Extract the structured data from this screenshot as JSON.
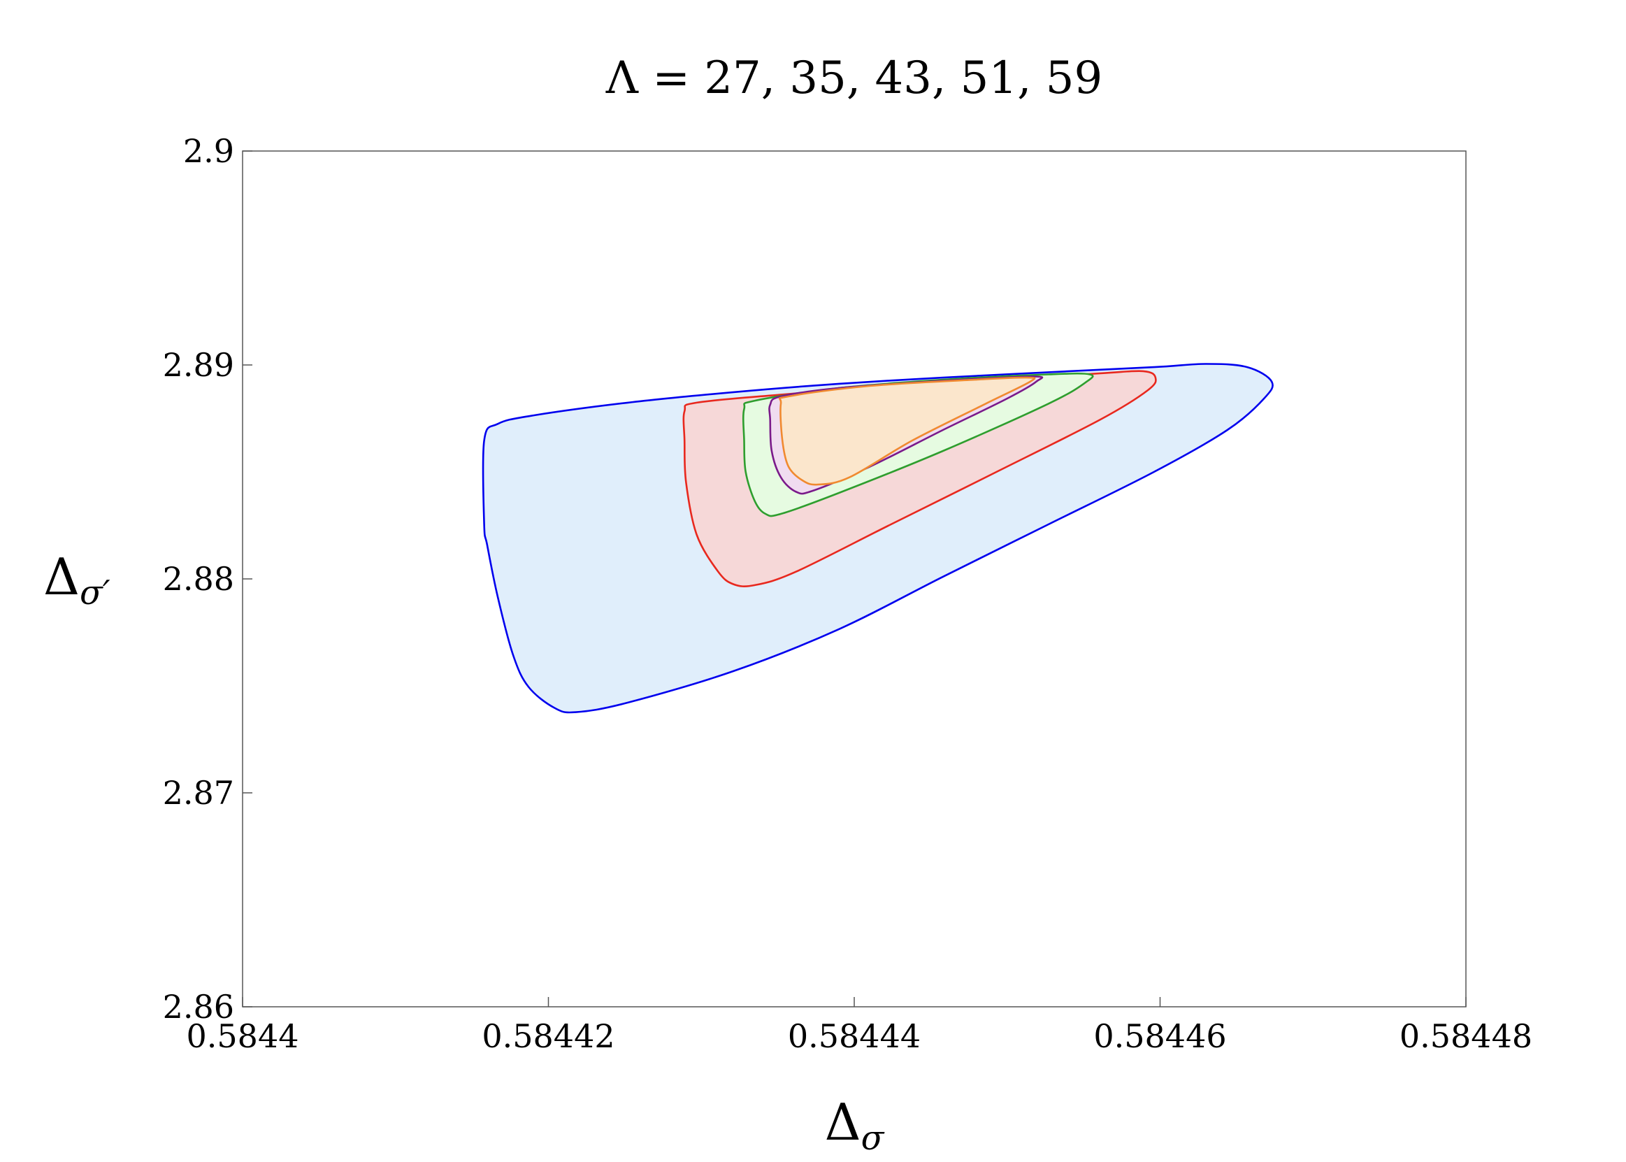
{
  "chart_data": {
    "type": "area",
    "title": "Λ = 27, 35, 43, 51, 59",
    "xlabel": "Δ",
    "xlabel_sub": "σ",
    "ylabel": "Δ",
    "ylabel_sub": "σ′",
    "xlim": [
      0.5844,
      0.58448
    ],
    "ylim": [
      2.86,
      2.9
    ],
    "xticks": [
      0.5844,
      0.58442,
      0.58444,
      0.58446,
      0.58448
    ],
    "xtick_labels": [
      "0.5844",
      "0.58442",
      "0.58444",
      "0.58446",
      "0.58448"
    ],
    "yticks": [
      2.86,
      2.87,
      2.88,
      2.89,
      2.9
    ],
    "ytick_labels": [
      "2.86",
      "2.87",
      "2.88",
      "2.89",
      "2.9"
    ],
    "grid": false,
    "legend": "none",
    "series": [
      {
        "name": "Λ=27",
        "stroke": "#0000ee",
        "fill": "#e0eefb",
        "x": [
          0.5844158,
          0.5844167,
          0.5844191,
          0.5844252,
          0.5844321,
          0.584439,
          0.5844458,
          0.5844527,
          0.5844596,
          0.584463,
          0.5844657,
          0.5844673,
          0.5844668,
          0.5844644,
          0.5844596,
          0.5844527,
          0.5844458,
          0.584439,
          0.5844321,
          0.5844252,
          0.5844218,
          0.5844204,
          0.5844187,
          0.5844177,
          0.5844167,
          0.584416,
          0.5844158
        ],
        "y": [
          2.88647,
          2.88725,
          2.88765,
          2.88824,
          2.88873,
          2.88912,
          2.88941,
          2.88966,
          2.8899,
          2.89005,
          2.8899,
          2.88922,
          2.88843,
          2.88696,
          2.885,
          2.88255,
          2.8801,
          2.87765,
          2.87569,
          2.87422,
          2.87377,
          2.87397,
          2.87495,
          2.87642,
          2.87912,
          2.88157,
          2.88255
        ]
      },
      {
        "name": "Λ=35",
        "stroke": "#e8281e",
        "fill": "#f6d8d8",
        "x": [
          0.5844289,
          0.5844297,
          0.5844355,
          0.5844424,
          0.5844493,
          0.5844561,
          0.5844589,
          0.5844597,
          0.5844592,
          0.5844561,
          0.5844493,
          0.5844424,
          0.5844362,
          0.5844335,
          0.5844321,
          0.5844311,
          0.5844297,
          0.584429,
          0.5844289
        ],
        "y": [
          2.88784,
          2.88824,
          2.88863,
          2.88902,
          2.88931,
          2.88961,
          2.88971,
          2.88941,
          2.88882,
          2.88745,
          2.885,
          2.88255,
          2.88034,
          2.87971,
          2.87975,
          2.88034,
          2.88206,
          2.88451,
          2.88647
        ]
      },
      {
        "name": "Λ=43",
        "stroke": "#2e9e2e",
        "fill": "#e6fbe1",
        "x": [
          0.5844328,
          0.5844335,
          0.584439,
          0.5844458,
          0.5844527,
          0.5844554,
          0.5844551,
          0.5844527,
          0.5844458,
          0.584439,
          0.5844352,
          0.5844342,
          0.5844335,
          0.5844329,
          0.5844328
        ],
        "y": [
          2.88794,
          2.88833,
          2.88892,
          2.88931,
          2.88956,
          2.88956,
          2.88917,
          2.88819,
          2.88598,
          2.88402,
          2.88304,
          2.88304,
          2.88363,
          2.885,
          2.88647
        ]
      },
      {
        "name": "Λ=51",
        "stroke": "#7a1a8a",
        "fill": "#f0dcf0",
        "x": [
          0.5844345,
          0.5844352,
          0.584439,
          0.5844458,
          0.5844517,
          0.5844519,
          0.58445,
          0.5844458,
          0.584441,
          0.5844373,
          0.5844362,
          0.5844352,
          0.5844346,
          0.5844345
        ],
        "y": [
          2.88814,
          2.88853,
          2.88892,
          2.88926,
          2.88946,
          2.88922,
          2.88843,
          2.88696,
          2.88524,
          2.88412,
          2.88407,
          2.88475,
          2.88598,
          2.88745
        ]
      },
      {
        "name": "Λ=59",
        "stroke": "#f08a30",
        "fill": "#fbe6cc",
        "x": [
          0.5844352,
          0.5844357,
          0.584441,
          0.5844479,
          0.5844513,
          0.5844515,
          0.5844486,
          0.5844438,
          0.5844397,
          0.5844376,
          0.5844366,
          0.5844357,
          0.5844353
        ],
        "y": [
          2.88819,
          2.88853,
          2.88902,
          2.88931,
          2.88941,
          2.88922,
          2.88819,
          2.88647,
          2.88475,
          2.88441,
          2.88461,
          2.88525,
          2.88647
        ]
      }
    ]
  }
}
